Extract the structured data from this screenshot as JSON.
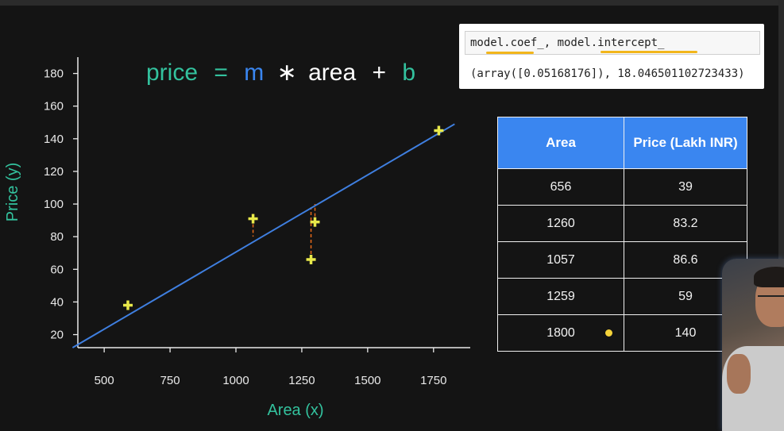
{
  "equation": {
    "price": "price",
    "eq": "=",
    "m": "m",
    "times": "∗",
    "area": "area",
    "plus": "+",
    "b": "b"
  },
  "code": {
    "input": "model.coef_, model.intercept_",
    "output": "(array([0.05168176]), 18.046501102723433)"
  },
  "table": {
    "headers": [
      "Area",
      "Price (Lakh INR)"
    ],
    "rows": [
      [
        "656",
        "39"
      ],
      [
        "1260",
        "83.2"
      ],
      [
        "1057",
        "86.6"
      ],
      [
        "1259",
        "59"
      ],
      [
        "1800",
        "140"
      ]
    ]
  },
  "colors": {
    "accent_teal": "#33c29e",
    "accent_blue": "#3a86f0",
    "line": "#3f7fe0",
    "point": "#e8e94a",
    "residual": "#e86a1a",
    "underline": "#f2b61c"
  },
  "chart_data": {
    "type": "scatter",
    "title": "",
    "xlabel": "Area (x)",
    "ylabel": "Price (y)",
    "xlim": [
      400,
      1800
    ],
    "ylim": [
      12,
      190
    ],
    "xticks": [
      500,
      750,
      1000,
      1250,
      1500,
      1750
    ],
    "yticks": [
      20,
      40,
      60,
      80,
      100,
      120,
      140,
      160,
      180
    ],
    "points": [
      {
        "x": 590,
        "y": 38
      },
      {
        "x": 1065,
        "y": 91
      },
      {
        "x": 1285,
        "y": 66
      },
      {
        "x": 1300,
        "y": 89
      },
      {
        "x": 1770,
        "y": 145
      }
    ],
    "fit_line": {
      "x1": 380,
      "y1": 12,
      "x2": 1830,
      "y2": 149
    },
    "residuals": [
      {
        "x": 1065,
        "y_from": 91,
        "y_to": 80
      },
      {
        "x": 1285,
        "y_from": 66,
        "y_to": 98
      },
      {
        "x": 1300,
        "y_from": 89,
        "y_to": 100
      }
    ],
    "grid": false,
    "legend": "none"
  }
}
